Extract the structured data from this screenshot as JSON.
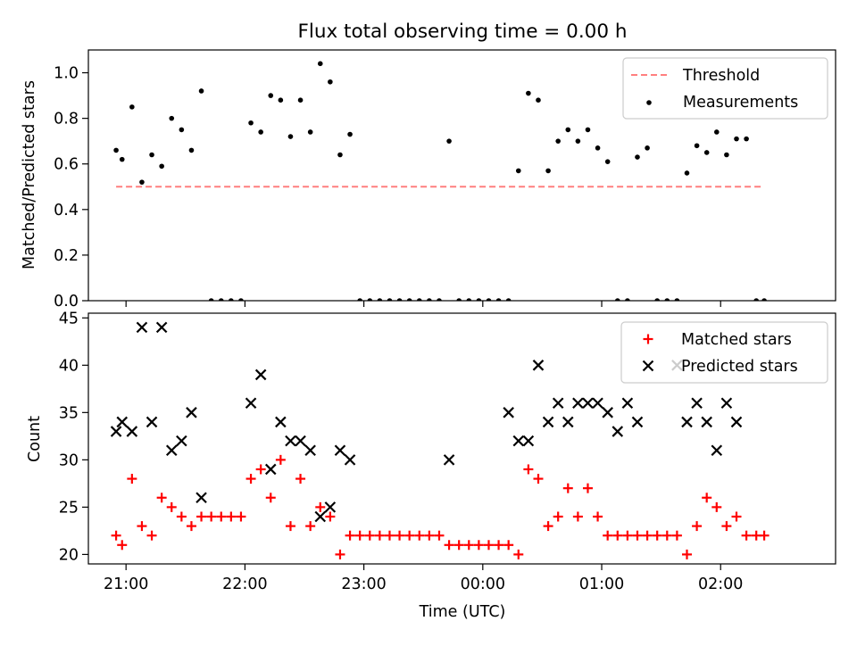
{
  "title": "Flux total observing time = 0.00 h",
  "chart_data": [
    {
      "type": "scatter",
      "panel": "top",
      "title": "Flux total observing time = 0.00 h",
      "xlabel": "",
      "ylabel": "Matched/Predicted stars",
      "xlim": [
        "20:41",
        "02:58"
      ],
      "ylim": [
        0.0,
        1.1
      ],
      "yticks": [
        "0.0",
        "0.2",
        "0.4",
        "0.6",
        "0.8",
        "1.0"
      ],
      "legend": "top-right",
      "series": [
        {
          "name": "Threshold",
          "kind": "line",
          "color": "#ff7f7f",
          "x": [
            "20:55",
            "02:22"
          ],
          "y": [
            0.5,
            0.5
          ]
        },
        {
          "name": "Measurements",
          "kind": "scatter",
          "color": "#000000",
          "x": [
            "20:55",
            "20:58",
            "21:03",
            "21:08",
            "21:13",
            "21:18",
            "21:23",
            "21:28",
            "21:33",
            "21:38",
            "21:43",
            "21:48",
            "21:53",
            "21:58",
            "22:03",
            "22:08",
            "22:13",
            "22:18",
            "22:23",
            "22:28",
            "22:33",
            "22:38",
            "22:43",
            "22:48",
            "22:53",
            "22:58",
            "23:03",
            "23:08",
            "23:13",
            "23:18",
            "23:23",
            "23:28",
            "23:33",
            "23:38",
            "23:43",
            "23:48",
            "23:53",
            "23:58",
            "00:03",
            "00:08",
            "00:13",
            "00:18",
            "00:23",
            "00:28",
            "00:33",
            "00:38",
            "00:43",
            "00:48",
            "00:53",
            "00:58",
            "01:03",
            "01:08",
            "01:13",
            "01:18",
            "01:23",
            "01:28",
            "01:33",
            "01:38",
            "01:43",
            "01:48",
            "01:53",
            "01:58",
            "02:03",
            "02:08",
            "02:13",
            "02:18",
            "02:22"
          ],
          "y": [
            0.66,
            0.62,
            0.85,
            0.52,
            0.64,
            0.59,
            0.8,
            0.75,
            0.66,
            0.92,
            0.0,
            0.0,
            0.0,
            0.0,
            0.78,
            0.74,
            0.9,
            0.88,
            0.72,
            0.88,
            0.74,
            1.04,
            0.96,
            0.64,
            0.73,
            0.0,
            0.0,
            0.0,
            0.0,
            0.0,
            0.0,
            0.0,
            0.0,
            0.0,
            0.7,
            0.0,
            0.0,
            0.0,
            0.0,
            0.0,
            0.0,
            0.57,
            0.91,
            0.88,
            0.57,
            0.7,
            0.75,
            0.7,
            0.75,
            0.67,
            0.61,
            0.0,
            0.0,
            0.63,
            0.67,
            0.0,
            0.0,
            0.0,
            0.56,
            0.68,
            0.65,
            0.74,
            0.64,
            0.71,
            0.71,
            0.0,
            0.0
          ]
        }
      ]
    },
    {
      "type": "scatter",
      "panel": "bottom",
      "xlabel": "Time (UTC)",
      "ylabel": "Count",
      "xlim": [
        "20:41",
        "02:58"
      ],
      "ylim": [
        19,
        45.5
      ],
      "xticks": [
        "21:00",
        "22:00",
        "23:00",
        "00:00",
        "01:00",
        "02:00"
      ],
      "yticks": [
        "20",
        "25",
        "30",
        "35",
        "40",
        "45"
      ],
      "legend": "top-right",
      "series": [
        {
          "name": "Matched stars",
          "kind": "scatter",
          "marker": "+",
          "color": "#ff0000",
          "x": [
            "20:55",
            "20:58",
            "21:03",
            "21:08",
            "21:13",
            "21:18",
            "21:23",
            "21:28",
            "21:33",
            "21:38",
            "21:43",
            "21:48",
            "21:53",
            "21:58",
            "22:03",
            "22:08",
            "22:13",
            "22:18",
            "22:23",
            "22:28",
            "22:33",
            "22:38",
            "22:43",
            "22:48",
            "22:53",
            "22:58",
            "23:03",
            "23:08",
            "23:13",
            "23:18",
            "23:23",
            "23:28",
            "23:33",
            "23:38",
            "23:43",
            "23:48",
            "23:53",
            "23:58",
            "00:03",
            "00:08",
            "00:13",
            "00:18",
            "00:23",
            "00:28",
            "00:33",
            "00:38",
            "00:43",
            "00:48",
            "00:53",
            "00:58",
            "01:03",
            "01:08",
            "01:13",
            "01:18",
            "01:23",
            "01:28",
            "01:33",
            "01:38",
            "01:43",
            "01:48",
            "01:53",
            "01:58",
            "02:03",
            "02:08",
            "02:13",
            "02:18",
            "02:22"
          ],
          "y": [
            22,
            21,
            28,
            23,
            22,
            26,
            25,
            24,
            23,
            24,
            24,
            24,
            24,
            24,
            28,
            29,
            26,
            30,
            23,
            28,
            23,
            25,
            24,
            20,
            22,
            22,
            22,
            22,
            22,
            22,
            22,
            22,
            22,
            22,
            21,
            21,
            21,
            21,
            21,
            21,
            21,
            20,
            29,
            28,
            23,
            24,
            27,
            24,
            27,
            24,
            22,
            22,
            22,
            22,
            22,
            22,
            22,
            22,
            20,
            23,
            26,
            25,
            23,
            24,
            22,
            22,
            22
          ]
        },
        {
          "name": "Predicted stars",
          "kind": "scatter",
          "marker": "x",
          "color": "#000000",
          "x": [
            "20:55",
            "20:58",
            "21:03",
            "21:08",
            "21:13",
            "21:18",
            "21:23",
            "21:28",
            "21:33",
            "21:38",
            "22:03",
            "22:08",
            "22:13",
            "22:18",
            "22:23",
            "22:28",
            "22:33",
            "22:38",
            "22:43",
            "22:48",
            "22:53",
            "23:43",
            "00:13",
            "00:18",
            "00:23",
            "00:28",
            "00:33",
            "00:38",
            "00:43",
            "00:48",
            "00:53",
            "00:58",
            "01:03",
            "01:08",
            "01:13",
            "01:18",
            "01:38",
            "01:43",
            "01:48",
            "01:53",
            "01:58",
            "02:03",
            "02:08"
          ],
          "y": [
            33,
            34,
            33,
            44,
            34,
            44,
            31,
            32,
            35,
            26,
            36,
            39,
            29,
            34,
            32,
            32,
            31,
            24,
            25,
            31,
            30,
            30,
            35,
            32,
            32,
            40,
            34,
            36,
            34,
            36,
            36,
            36,
            35,
            33,
            36,
            34,
            40,
            34,
            36,
            34,
            31,
            36,
            34
          ]
        }
      ]
    }
  ]
}
